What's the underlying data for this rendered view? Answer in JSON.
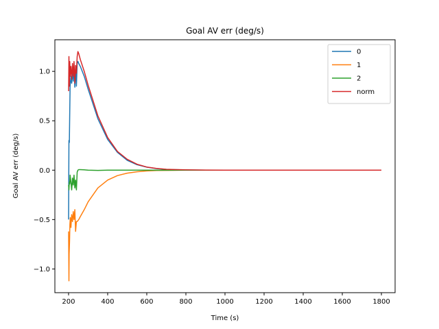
{
  "chart_data": {
    "type": "line",
    "title": "Goal AV err (deg/s)",
    "xlabel": "Time (s)",
    "ylabel": "Goal AV err (deg/s)",
    "xlim": [
      130,
      1870
    ],
    "ylim": [
      -1.24,
      1.32
    ],
    "xticks": [
      200,
      400,
      600,
      800,
      1000,
      1200,
      1400,
      1600,
      1800
    ],
    "yticks": [
      -1.0,
      -0.5,
      0.0,
      0.5,
      1.0
    ],
    "ytick_labels": [
      "−1.0",
      "−0.5",
      "0.0",
      "0.5",
      "1.0"
    ],
    "grid": false,
    "legend_position": "top-right",
    "series": [
      {
        "name": "0",
        "color": "#1f77b4",
        "x": [
          200,
          202,
          204,
          206,
          208,
          212,
          216,
          220,
          224,
          228,
          232,
          236,
          240,
          244,
          248,
          252,
          260,
          280,
          300,
          350,
          400,
          450,
          500,
          550,
          600,
          650,
          700,
          800,
          900,
          1000,
          1200,
          1400,
          1600,
          1800
        ],
        "y": [
          -0.5,
          0.3,
          0.28,
          0.6,
          0.85,
          0.95,
          0.88,
          1.0,
          0.9,
          1.05,
          0.84,
          1.02,
          0.85,
          1.08,
          1.1,
          1.08,
          1.05,
          0.95,
          0.82,
          0.52,
          0.31,
          0.18,
          0.1,
          0.055,
          0.03,
          0.016,
          0.008,
          0.002,
          0.0,
          0.0,
          0.0,
          0.0,
          0.0,
          0.0
        ]
      },
      {
        "name": "1",
        "color": "#ff7f0e",
        "x": [
          200,
          202,
          203,
          205,
          207,
          209,
          212,
          216,
          220,
          224,
          228,
          232,
          236,
          240,
          244,
          248,
          252,
          260,
          280,
          300,
          350,
          400,
          450,
          500,
          550,
          600,
          650,
          700,
          800,
          900,
          1000,
          1200,
          1400,
          1600,
          1800
        ],
        "y": [
          -0.62,
          -1.12,
          -0.85,
          -0.72,
          -0.55,
          -0.48,
          -0.58,
          -0.45,
          -0.52,
          -0.42,
          -0.5,
          -0.4,
          -0.62,
          -0.52,
          -0.52,
          -0.51,
          -0.5,
          -0.47,
          -0.4,
          -0.32,
          -0.18,
          -0.1,
          -0.055,
          -0.03,
          -0.016,
          -0.008,
          -0.004,
          -0.002,
          0.0,
          0.0,
          0.0,
          0.0,
          0.0,
          0.0,
          0.0
        ]
      },
      {
        "name": "2",
        "color": "#2ca02c",
        "x": [
          200,
          202,
          204,
          206,
          208,
          212,
          216,
          220,
          224,
          228,
          232,
          236,
          240,
          244,
          248,
          252,
          260,
          280,
          300,
          350,
          400,
          500,
          600,
          800,
          1000,
          1200,
          1400,
          1600,
          1800
        ],
        "y": [
          -0.15,
          -0.2,
          -0.12,
          -0.14,
          -0.05,
          -0.12,
          -0.2,
          -0.08,
          -0.15,
          -0.05,
          -0.18,
          -0.1,
          -0.2,
          -0.02,
          0.0,
          0.005,
          0.005,
          0.003,
          0.0,
          -0.002,
          0.0,
          0.0,
          0.0,
          0.0,
          0.0,
          0.0,
          0.0,
          0.0,
          0.0
        ]
      },
      {
        "name": "norm",
        "color": "#d62728",
        "x": [
          200,
          202,
          204,
          206,
          208,
          212,
          216,
          220,
          224,
          228,
          232,
          236,
          240,
          244,
          248,
          252,
          260,
          280,
          300,
          350,
          400,
          450,
          500,
          550,
          600,
          650,
          700,
          800,
          900,
          1000,
          1200,
          1400,
          1600,
          1800
        ],
        "y": [
          0.8,
          1.15,
          0.85,
          1.1,
          0.95,
          1.05,
          0.92,
          1.08,
          0.95,
          1.1,
          0.88,
          1.06,
          0.98,
          1.15,
          1.2,
          1.18,
          1.12,
          1.0,
          0.86,
          0.55,
          0.33,
          0.19,
          0.11,
          0.06,
          0.032,
          0.017,
          0.009,
          0.003,
          0.001,
          0.0,
          0.0,
          0.0,
          0.0,
          0.0
        ]
      }
    ]
  }
}
